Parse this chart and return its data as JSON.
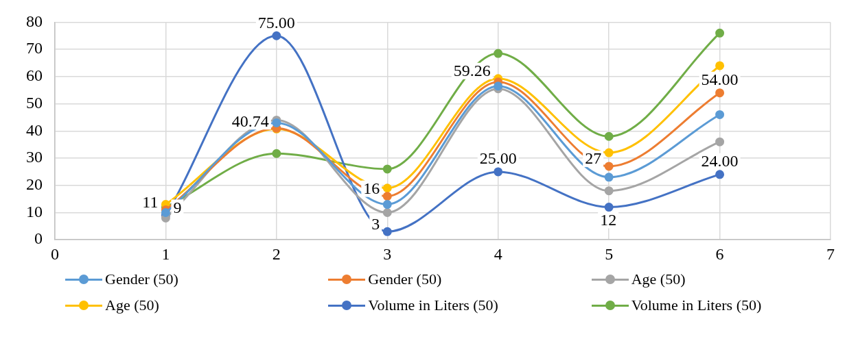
{
  "chart_data": {
    "type": "line",
    "x": [
      1,
      2,
      3,
      4,
      5,
      6
    ],
    "xlim": [
      0,
      7
    ],
    "xticks": [
      0,
      1,
      2,
      3,
      4,
      5,
      6,
      7
    ],
    "ylim": [
      0,
      80
    ],
    "yticks": [
      0,
      10,
      20,
      30,
      40,
      50,
      60,
      70,
      80
    ],
    "grid": true,
    "legend": "bottom",
    "marker": "circle",
    "series": [
      {
        "name": "Gender (50)",
        "color": "#5b9bd5",
        "values": [
          10,
          43,
          13,
          56.5,
          23,
          46
        ]
      },
      {
        "name": "Gender (50)",
        "color": "#ed7d31",
        "values": [
          11,
          41,
          16,
          58,
          27,
          54
        ],
        "value_labels": [
          "11",
          null,
          "16",
          null,
          "27",
          "54.00"
        ]
      },
      {
        "name": "Age (50)",
        "color": "#a5a5a5",
        "values": [
          8,
          44,
          10,
          55.5,
          18,
          36
        ]
      },
      {
        "name": "Age (50)",
        "color": "#ffc000",
        "values": [
          13,
          40.74,
          19,
          59.26,
          32,
          64
        ],
        "value_labels": [
          null,
          "40.74",
          null,
          "59.26",
          null,
          null
        ]
      },
      {
        "name": "Volume in Liters (50)",
        "color": "#4472c4",
        "values": [
          9,
          75,
          3,
          25,
          12,
          24
        ],
        "value_labels": [
          "9",
          "75.00",
          "3",
          "25.00",
          "12",
          "24.00"
        ]
      },
      {
        "name": "Volume in Liters (50)",
        "color": "#70ad47",
        "values": [
          12,
          31.7,
          26,
          68.5,
          38,
          76
        ]
      }
    ]
  }
}
